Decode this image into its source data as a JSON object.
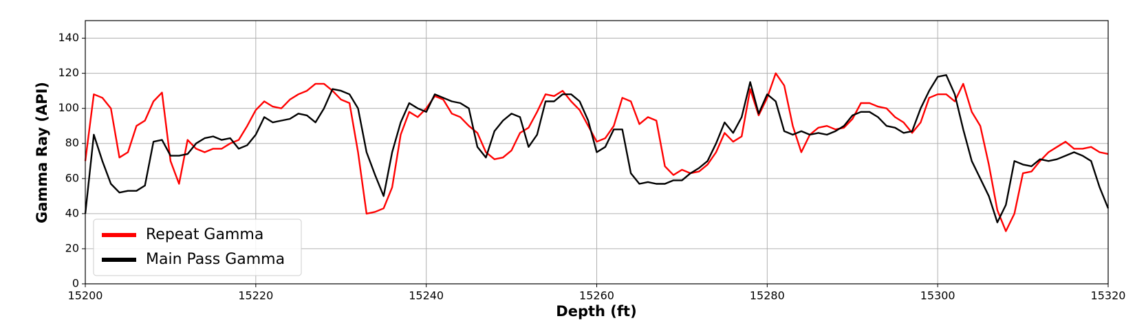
{
  "chart_data": {
    "type": "line",
    "xlabel": "Depth (ft)",
    "ylabel": "Gamma Ray (API)",
    "x": [
      15200,
      15201,
      15202,
      15203,
      15204,
      15205,
      15206,
      15207,
      15208,
      15209,
      15210,
      15211,
      15212,
      15213,
      15214,
      15215,
      15216,
      15217,
      15218,
      15219,
      15220,
      15221,
      15222,
      15223,
      15224,
      15225,
      15226,
      15227,
      15228,
      15229,
      15230,
      15231,
      15232,
      15233,
      15234,
      15235,
      15236,
      15237,
      15238,
      15239,
      15240,
      15241,
      15242,
      15243,
      15244,
      15245,
      15246,
      15247,
      15248,
      15249,
      15250,
      15251,
      15252,
      15253,
      15254,
      15255,
      15256,
      15257,
      15258,
      15259,
      15260,
      15261,
      15262,
      15263,
      15264,
      15265,
      15266,
      15267,
      15268,
      15269,
      15270,
      15271,
      15272,
      15273,
      15274,
      15275,
      15276,
      15277,
      15278,
      15279,
      15280,
      15281,
      15282,
      15283,
      15284,
      15285,
      15286,
      15287,
      15288,
      15289,
      15290,
      15291,
      15292,
      15293,
      15294,
      15295,
      15296,
      15297,
      15298,
      15299,
      15300,
      15301,
      15302,
      15303,
      15304,
      15305,
      15306,
      15307,
      15308,
      15309,
      15310,
      15311,
      15312,
      15313,
      15314,
      15315,
      15316,
      15317,
      15318,
      15319,
      15320
    ],
    "series": [
      {
        "name": "Repeat Gamma",
        "color": "#ff0000",
        "values": [
          70,
          108,
          106,
          100,
          72,
          75,
          90,
          93,
          104,
          109,
          70,
          57,
          82,
          77,
          75,
          77,
          77,
          80,
          82,
          90,
          99,
          104,
          101,
          100,
          105,
          108,
          110,
          114,
          114,
          110,
          105,
          103,
          75,
          40,
          41,
          43,
          55,
          85,
          98,
          95,
          100,
          107,
          105,
          97,
          95,
          90,
          86,
          75,
          71,
          72,
          76,
          86,
          89,
          98,
          108,
          107,
          110,
          104,
          99,
          90,
          81,
          83,
          90,
          106,
          104,
          91,
          95,
          93,
          67,
          62,
          65,
          63,
          64,
          68,
          75,
          86,
          81,
          84,
          111,
          96,
          106,
          120,
          113,
          90,
          75,
          85,
          89,
          90,
          88,
          89,
          94,
          103,
          103,
          101,
          100,
          95,
          92,
          86,
          92,
          106,
          108,
          108,
          104,
          114,
          98,
          90,
          68,
          42,
          30,
          40,
          63,
          64,
          70,
          75,
          78,
          81,
          77,
          77,
          78,
          75,
          74
        ]
      },
      {
        "name": "Main Pass Gamma",
        "color": "#000000",
        "values": [
          40,
          85,
          70,
          57,
          52,
          53,
          53,
          56,
          81,
          82,
          73,
          73,
          74,
          80,
          83,
          84,
          82,
          83,
          77,
          79,
          85,
          95,
          92,
          93,
          94,
          97,
          96,
          92,
          100,
          111,
          110,
          108,
          100,
          75,
          62,
          50,
          75,
          92,
          103,
          100,
          98,
          108,
          106,
          104,
          103,
          100,
          78,
          72,
          87,
          93,
          97,
          95,
          78,
          85,
          104,
          104,
          108,
          108,
          104,
          93,
          75,
          78,
          88,
          88,
          63,
          57,
          58,
          57,
          57,
          59,
          59,
          63,
          66,
          70,
          80,
          92,
          86,
          95,
          115,
          97,
          108,
          104,
          87,
          85,
          87,
          85,
          86,
          85,
          87,
          90,
          96,
          98,
          98,
          95,
          90,
          89,
          86,
          87,
          100,
          110,
          118,
          119,
          108,
          88,
          70,
          60,
          50,
          35,
          45,
          70,
          68,
          67,
          71,
          70,
          71,
          73,
          75,
          73,
          70,
          55,
          43
        ]
      }
    ],
    "xlim": [
      15200,
      15320
    ],
    "xticks": [
      15200,
      15220,
      15240,
      15260,
      15280,
      15300,
      15320
    ],
    "ylim": [
      0,
      150
    ],
    "yticks": [
      0,
      20,
      40,
      60,
      80,
      100,
      120,
      140
    ],
    "grid": true,
    "legend": "lower left"
  }
}
